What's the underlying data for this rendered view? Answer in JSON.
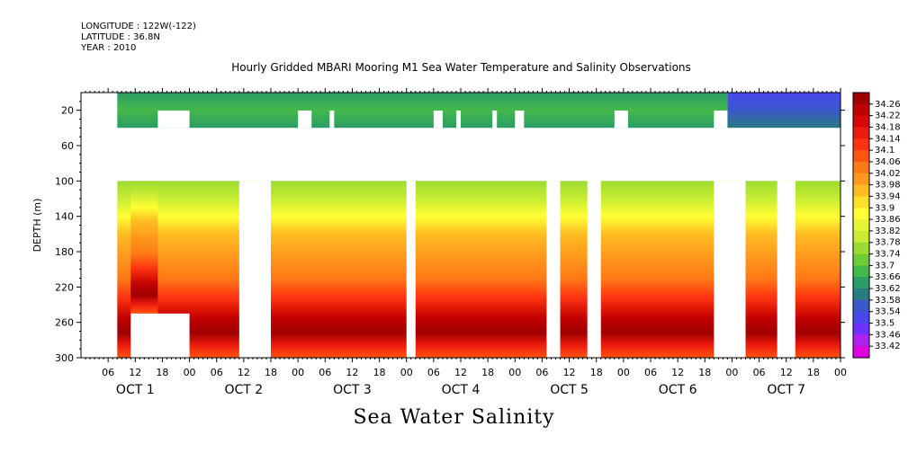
{
  "header": {
    "longitude": "LONGITUDE : 122W(-122)",
    "latitude": "LATITUDE : 36.8N",
    "year": "YEAR : 2010",
    "title": "Hourly Gridded MBARI Mooring M1 Sea Water Temperature and Salinity Observations"
  },
  "footer": {
    "variable": "Sea Water Salinity"
  },
  "chart_data": {
    "type": "heatmap",
    "title": "Hourly Gridded MBARI Mooring M1 Sea Water Temperature and Salinity Observations",
    "variable": "Sea Water Salinity",
    "ylabel": "DEPTH (m)",
    "ylim": [
      300,
      0
    ],
    "y_ticks": [
      20,
      60,
      100,
      140,
      180,
      220,
      260,
      300
    ],
    "x_range_hours": [
      0,
      168
    ],
    "x_hour_ticks": [
      "06",
      "12",
      "18",
      "00",
      "06",
      "12",
      "18",
      "00",
      "06",
      "12",
      "18",
      "00",
      "06",
      "12",
      "18",
      "00",
      "06",
      "12",
      "18",
      "00",
      "06",
      "12",
      "18",
      "00",
      "06",
      "12",
      "18",
      "00"
    ],
    "x_days": [
      "OCT 1",
      "OCT 2",
      "OCT 3",
      "OCT 4",
      "OCT 5",
      "OCT 6",
      "OCT 7"
    ],
    "colorbar_levels": [
      34.26,
      34.22,
      34.18,
      34.14,
      34.1,
      34.06,
      34.02,
      33.98,
      33.94,
      33.9,
      33.86,
      33.82,
      33.78,
      33.74,
      33.7,
      33.66,
      33.62,
      33.58,
      33.54,
      33.5,
      33.46,
      33.42
    ],
    "colorbar_colors": [
      "#a00000",
      "#c00000",
      "#d80808",
      "#ee1a0e",
      "#ff3311",
      "#ff5512",
      "#ff7a16",
      "#ff9a1c",
      "#ffbd22",
      "#ffe028",
      "#ffff33",
      "#e8f535",
      "#c8ec32",
      "#9cdc30",
      "#6fcc36",
      "#44b84a",
      "#2a9c66",
      "#2a7a82",
      "#3a58c8",
      "#4848ee",
      "#7030ff",
      "#b020f0",
      "#e000e0"
    ],
    "profile_approx": [
      {
        "depth": 20,
        "value": 33.7
      },
      {
        "depth": 100,
        "value": 33.8
      },
      {
        "depth": 140,
        "value": 33.96
      },
      {
        "depth": 180,
        "value": 34.05
      },
      {
        "depth": 220,
        "value": 34.14
      },
      {
        "depth": 260,
        "value": 34.2
      },
      {
        "depth": 300,
        "value": 34.14
      }
    ],
    "surface_layer": {
      "depth_range": [
        0,
        40
      ],
      "oct1_6_value": 33.7,
      "oct6_7_value": 33.54
    },
    "missing_hours": [
      [
        0,
        8
      ],
      [
        35,
        42
      ],
      [
        72,
        74
      ],
      [
        103,
        106
      ],
      [
        112,
        115
      ],
      [
        140,
        147
      ],
      [
        154,
        158
      ]
    ]
  }
}
